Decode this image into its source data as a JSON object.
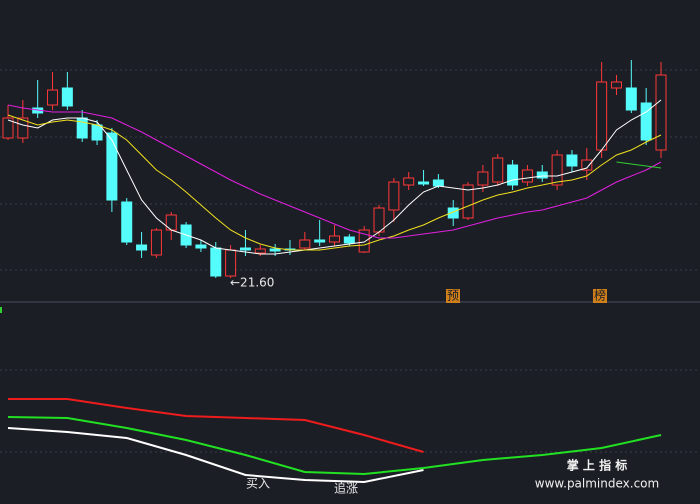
{
  "chart_data": [
    {
      "type": "candlestick",
      "ylim": [
        20.72,
        32.72
      ],
      "up_color": "#ff3838",
      "down_color": "#54fcfc",
      "open": [
        27.2,
        27.2,
        28.4,
        28.52,
        29.2,
        28.0,
        27.72,
        27.4,
        24.64,
        22.92,
        22.52,
        23.52,
        23.72,
        22.92,
        22.8,
        21.68,
        22.8,
        22.6,
        22.76,
        22.76,
        22.8,
        23.12,
        23.04,
        23.24,
        22.64,
        23.44,
        24.32,
        25.32,
        25.44,
        25.52,
        24.4,
        24.0,
        25.32,
        25.44,
        26.12,
        25.44,
        25.84,
        25.32,
        26.52,
        25.92,
        26.72,
        29.2,
        29.2,
        28.6,
        26.72
      ],
      "high": [
        28.52,
        28.72,
        29.52,
        29.84,
        29.84,
        28.32,
        27.92,
        27.6,
        24.8,
        23.44,
        23.6,
        24.24,
        23.84,
        23.12,
        23.04,
        22.92,
        23.52,
        22.92,
        22.96,
        23.12,
        23.44,
        23.92,
        23.72,
        23.36,
        23.68,
        24.52,
        25.6,
        25.84,
        25.92,
        25.76,
        24.72,
        25.44,
        26.12,
        26.56,
        26.32,
        26.12,
        26.12,
        26.72,
        26.72,
        26.8,
        30.24,
        29.72,
        30.32,
        29.2,
        30.24
      ],
      "low": [
        27.12,
        27.0,
        28.0,
        28.32,
        28.32,
        27.04,
        26.92,
        24.24,
        22.92,
        22.4,
        22.4,
        23.12,
        22.8,
        22.64,
        21.6,
        21.6,
        22.48,
        22.48,
        22.48,
        22.52,
        22.72,
        22.88,
        22.88,
        22.88,
        22.6,
        23.28,
        23.84,
        25.12,
        25.28,
        25.2,
        23.68,
        23.92,
        25.04,
        25.28,
        25.12,
        25.28,
        25.44,
        25.12,
        25.84,
        25.52,
        26.4,
        28.92,
        28.2,
        26.92,
        26.4
      ],
      "close": [
        28.0,
        28.0,
        28.2,
        29.12,
        28.48,
        27.2,
        27.12,
        24.72,
        23.04,
        22.72,
        23.52,
        24.12,
        22.92,
        22.8,
        21.68,
        22.72,
        22.72,
        22.76,
        22.68,
        22.72,
        23.12,
        23.04,
        23.28,
        23.0,
        23.52,
        24.4,
        25.44,
        25.6,
        25.36,
        25.28,
        24.0,
        25.32,
        25.84,
        26.4,
        25.32,
        25.92,
        25.6,
        26.52,
        26.08,
        26.32,
        29.44,
        29.44,
        28.32,
        27.12,
        29.72
      ],
      "series": [
        {
          "color": "#ffffff",
          "values": [
            27.92,
            27.72,
            27.6,
            27.92,
            28.0,
            28.0,
            27.84,
            27.12,
            25.92,
            24.72,
            24.0,
            23.52,
            23.32,
            23.12,
            22.8,
            22.72,
            22.64,
            22.56,
            22.56,
            22.64,
            22.72,
            22.8,
            22.88,
            22.96,
            23.04,
            23.44,
            23.92,
            24.52,
            25.04,
            25.28,
            25.2,
            25.12,
            25.2,
            25.32,
            25.52,
            25.6,
            25.68,
            25.68,
            25.84,
            26.0,
            26.72,
            27.52,
            27.92,
            28.24,
            28.72
          ]
        },
        {
          "color": "#f0e020",
          "values": [
            28.12,
            27.92,
            27.72,
            27.84,
            27.92,
            27.84,
            27.72,
            27.52,
            27.12,
            26.52,
            25.92,
            25.52,
            25.04,
            24.52,
            24.0,
            23.52,
            23.2,
            22.96,
            22.8,
            22.72,
            22.72,
            22.72,
            22.8,
            22.88,
            22.92,
            23.12,
            23.28,
            23.52,
            23.72,
            24.0,
            24.24,
            24.48,
            24.72,
            24.92,
            25.04,
            25.2,
            25.32,
            25.44,
            25.52,
            25.68,
            26.12,
            26.52,
            26.72,
            27.04,
            27.32
          ]
        },
        {
          "color": "#e020e0",
          "values": [
            28.52,
            28.4,
            28.32,
            28.24,
            28.24,
            28.24,
            28.12,
            28.0,
            27.72,
            27.44,
            27.12,
            26.8,
            26.48,
            26.16,
            25.84,
            25.52,
            25.24,
            24.96,
            24.72,
            24.48,
            24.24,
            24.0,
            23.76,
            23.52,
            23.36,
            23.2,
            23.2,
            23.28,
            23.36,
            23.44,
            23.52,
            23.68,
            23.84,
            24.0,
            24.12,
            24.24,
            24.32,
            24.48,
            24.64,
            24.8,
            25.12,
            25.44,
            25.68,
            25.92,
            26.24
          ]
        },
        {
          "color": "#30d030",
          "values": [
            null,
            null,
            null,
            null,
            null,
            null,
            null,
            null,
            null,
            null,
            null,
            null,
            null,
            null,
            null,
            null,
            null,
            null,
            null,
            null,
            null,
            null,
            null,
            null,
            null,
            null,
            null,
            null,
            null,
            null,
            null,
            null,
            null,
            null,
            null,
            null,
            null,
            null,
            null,
            null,
            null,
            26.24,
            26.16,
            26.08,
            26.0
          ]
        }
      ],
      "annotations": [
        "←21.60",
        "预",
        "榜"
      ]
    },
    {
      "type": "line",
      "ylim": [
        0,
        100
      ],
      "x": [
        0,
        4,
        8,
        12,
        16,
        20,
        24,
        28,
        32,
        36,
        40,
        44
      ],
      "series": [
        {
          "color": "#ee1c1c",
          "values": [
            52.5,
            52.5,
            48,
            44,
            43,
            42,
            34.5,
            26,
            null,
            null,
            null,
            null
          ]
        },
        {
          "color": "#ffffff",
          "values": [
            38,
            36,
            33,
            24.5,
            14.5,
            12,
            11,
            17,
            null,
            null,
            null,
            null
          ]
        },
        {
          "color": "#22e022",
          "values": [
            43.5,
            43,
            38,
            32,
            24.5,
            16,
            15,
            18,
            22,
            24.5,
            28,
            34.5
          ]
        }
      ],
      "annotations": [
        "买入",
        "追涨"
      ],
      "watermark": [
        "掌 上 指 标",
        "www.palmindex.com"
      ]
    }
  ]
}
